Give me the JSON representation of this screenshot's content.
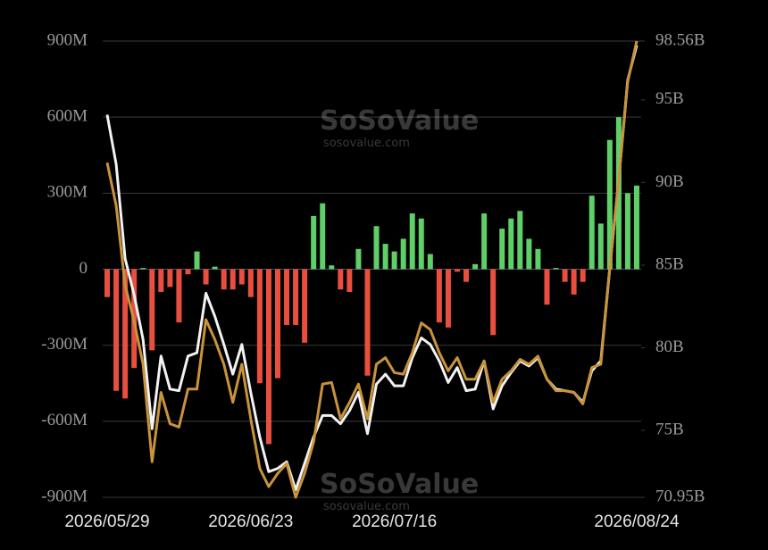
{
  "chart_data": {
    "type": "combo",
    "watermark": {
      "brand": "SoSoValue",
      "site": "sosovalue.com"
    },
    "categories": [
      "2026/05/29",
      null,
      null,
      null,
      null,
      null,
      null,
      null,
      null,
      null,
      null,
      null,
      null,
      null,
      null,
      null,
      "2026/06/23",
      null,
      null,
      null,
      null,
      null,
      null,
      null,
      null,
      null,
      null,
      null,
      null,
      null,
      null,
      null,
      "2026/07/16",
      null,
      null,
      null,
      null,
      null,
      null,
      null,
      null,
      null,
      null,
      null,
      null,
      null,
      null,
      null,
      null,
      null,
      null,
      null,
      null,
      null,
      null,
      null,
      null,
      null,
      null,
      "2026/08/24"
    ],
    "values": [
      -110,
      -480,
      -510,
      -390,
      5,
      -320,
      -90,
      -70,
      -210,
      -20,
      70,
      -60,
      10,
      -80,
      -80,
      -60,
      -110,
      -450,
      -690,
      -430,
      -220,
      -220,
      -290,
      210,
      260,
      15,
      -80,
      -90,
      80,
      -420,
      170,
      100,
      70,
      120,
      220,
      200,
      60,
      -210,
      -230,
      -10,
      -50,
      20,
      220,
      -260,
      160,
      200,
      230,
      120,
      80,
      -140,
      5,
      -50,
      -100,
      -50,
      290,
      180,
      510,
      600,
      300,
      330
    ],
    "positive_color": "#5fcf67",
    "negative_color": "#e84f3e",
    "series": [
      {
        "color": "#f2f2f2",
        "axis": "y2",
        "values": [
          94.1,
          91.1,
          85.4,
          83.2,
          80.5,
          75.1,
          79.5,
          77.5,
          77.4,
          79.5,
          79.7,
          83.3,
          81.9,
          80.2,
          78.4,
          80.2,
          77.3,
          74.6,
          72.5,
          72.7,
          73.1,
          71.4,
          73.0,
          74.6,
          75.9,
          75.9,
          75.4,
          76.2,
          77.3,
          74.8,
          77.8,
          78.4,
          77.7,
          77.7,
          79.4,
          80.6,
          80.2,
          79.2,
          77.9,
          78.8,
          77.4,
          77.5,
          79.2,
          76.3,
          77.7,
          78.5,
          79.2,
          78.9,
          79.4,
          78.1,
          77.5,
          77.4,
          77.3,
          76.7,
          78.6,
          79.2,
          84.8,
          90.2,
          96.2,
          98.3
        ]
      },
      {
        "color": "#c8933a",
        "axis": "y2",
        "values": [
          91.2,
          88.6,
          83.8,
          81.6,
          79.0,
          73.1,
          77.3,
          75.4,
          75.2,
          77.5,
          77.5,
          81.7,
          80.5,
          79.0,
          76.7,
          79.0,
          75.7,
          72.7,
          71.6,
          72.4,
          73.0,
          70.95,
          72.4,
          74.3,
          77.8,
          77.9,
          75.7,
          76.7,
          77.8,
          75.7,
          79.0,
          79.4,
          78.5,
          78.4,
          79.7,
          81.5,
          81.1,
          79.7,
          78.6,
          79.4,
          78.1,
          78.1,
          79.2,
          76.7,
          78.1,
          78.6,
          79.3,
          79.0,
          79.5,
          78.1,
          77.4,
          77.4,
          77.3,
          76.6,
          78.8,
          79.0,
          84.8,
          90.2,
          96.1,
          98.56
        ]
      }
    ],
    "ylim": [
      -900,
      900
    ],
    "yticks": [
      {
        "value": -900,
        "label": "-900M"
      },
      {
        "value": -600,
        "label": "-600M"
      },
      {
        "value": -300,
        "label": "-300M"
      },
      0,
      {
        "value": 300,
        "label": "300M"
      },
      {
        "value": 600,
        "label": "600M"
      },
      {
        "value": 900,
        "label": "900M"
      }
    ],
    "y2lim": [
      70.95,
      98.56
    ],
    "y2ticks": [
      {
        "value": 70.95,
        "label": "70.95B"
      },
      {
        "value": 75,
        "label": "75B"
      },
      {
        "value": 80,
        "label": "80B"
      },
      {
        "value": 85,
        "label": "85B"
      },
      {
        "value": 90,
        "label": "90B"
      },
      {
        "value": 95,
        "label": "95B"
      },
      {
        "value": 98.56,
        "label": "98.56B"
      }
    ],
    "grid": true
  }
}
